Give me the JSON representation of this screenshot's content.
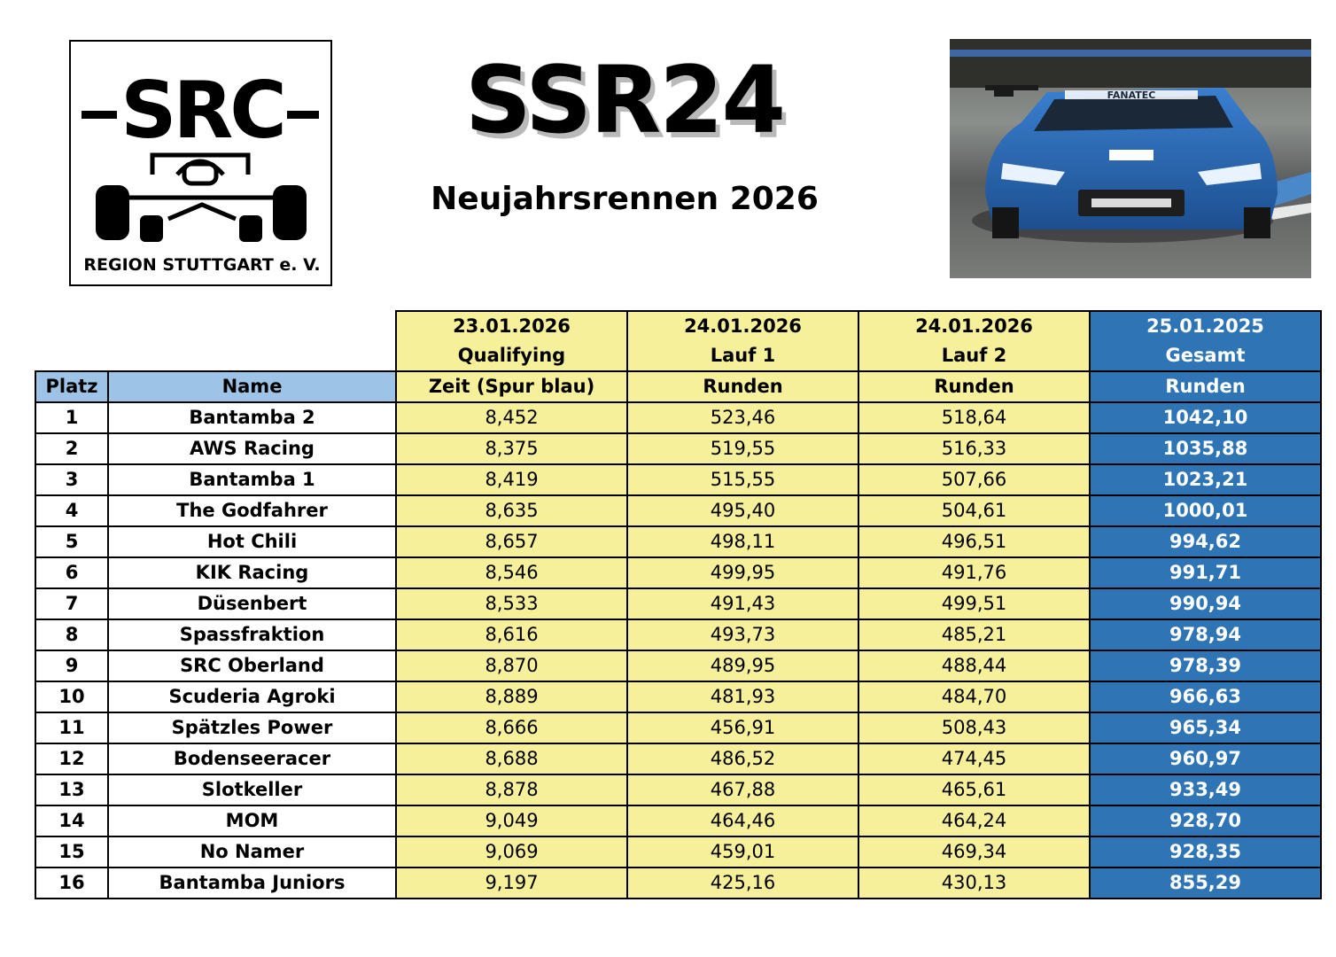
{
  "logo": {
    "main_text": "SRC",
    "sub_text": "REGION STUTTGART e. V."
  },
  "title": "SSR24",
  "subtitle": "Neujahrsrennen 2026",
  "photo": {
    "sponsor_text": "FANATEC"
  },
  "table": {
    "header_dates": [
      "23.01.2026",
      "24.01.2026",
      "24.01.2026",
      "25.01.2025"
    ],
    "header_events": [
      "Qualifying",
      "Lauf 1",
      "Lauf 2",
      "Gesamt"
    ],
    "header_columns": [
      "Platz",
      "Name",
      "Zeit (Spur blau)",
      "Runden",
      "Runden",
      "Runden"
    ],
    "rows": [
      {
        "platz": "1",
        "name": "Bantamba 2",
        "quali": "8,452",
        "lauf1": "523,46",
        "lauf2": "518,64",
        "gesamt": "1042,10"
      },
      {
        "platz": "2",
        "name": "AWS Racing",
        "quali": "8,375",
        "lauf1": "519,55",
        "lauf2": "516,33",
        "gesamt": "1035,88"
      },
      {
        "platz": "3",
        "name": "Bantamba 1",
        "quali": "8,419",
        "lauf1": "515,55",
        "lauf2": "507,66",
        "gesamt": "1023,21"
      },
      {
        "platz": "4",
        "name": "The Godfahrer",
        "quali": "8,635",
        "lauf1": "495,40",
        "lauf2": "504,61",
        "gesamt": "1000,01"
      },
      {
        "platz": "5",
        "name": "Hot Chili",
        "quali": "8,657",
        "lauf1": "498,11",
        "lauf2": "496,51",
        "gesamt": "994,62"
      },
      {
        "platz": "6",
        "name": "KIK Racing",
        "quali": "8,546",
        "lauf1": "499,95",
        "lauf2": "491,76",
        "gesamt": "991,71"
      },
      {
        "platz": "7",
        "name": "Düsenbert",
        "quali": "8,533",
        "lauf1": "491,43",
        "lauf2": "499,51",
        "gesamt": "990,94"
      },
      {
        "platz": "8",
        "name": "Spassfraktion",
        "quali": "8,616",
        "lauf1": "493,73",
        "lauf2": "485,21",
        "gesamt": "978,94"
      },
      {
        "platz": "9",
        "name": "SRC Oberland",
        "quali": "8,870",
        "lauf1": "489,95",
        "lauf2": "488,44",
        "gesamt": "978,39"
      },
      {
        "platz": "10",
        "name": "Scuderia Agroki",
        "quali": "8,889",
        "lauf1": "481,93",
        "lauf2": "484,70",
        "gesamt": "966,63"
      },
      {
        "platz": "11",
        "name": "Spätzles Power",
        "quali": "8,666",
        "lauf1": "456,91",
        "lauf2": "508,43",
        "gesamt": "965,34"
      },
      {
        "platz": "12",
        "name": "Bodenseeracer",
        "quali": "8,688",
        "lauf1": "486,52",
        "lauf2": "474,45",
        "gesamt": "960,97"
      },
      {
        "platz": "13",
        "name": "Slotkeller",
        "quali": "8,878",
        "lauf1": "467,88",
        "lauf2": "465,61",
        "gesamt": "933,49"
      },
      {
        "platz": "14",
        "name": "MOM",
        "quali": "9,049",
        "lauf1": "464,46",
        "lauf2": "464,24",
        "gesamt": "928,70"
      },
      {
        "platz": "15",
        "name": "No Namer",
        "quali": "9,069",
        "lauf1": "459,01",
        "lauf2": "469,34",
        "gesamt": "928,35"
      },
      {
        "platz": "16",
        "name": "Bantamba Juniors",
        "quali": "9,197",
        "lauf1": "425,16",
        "lauf2": "430,13",
        "gesamt": "855,29"
      }
    ]
  },
  "colors": {
    "yellow": "#f6f09a",
    "blue": "#2f75b5",
    "light_blue": "#9dc3e6"
  }
}
